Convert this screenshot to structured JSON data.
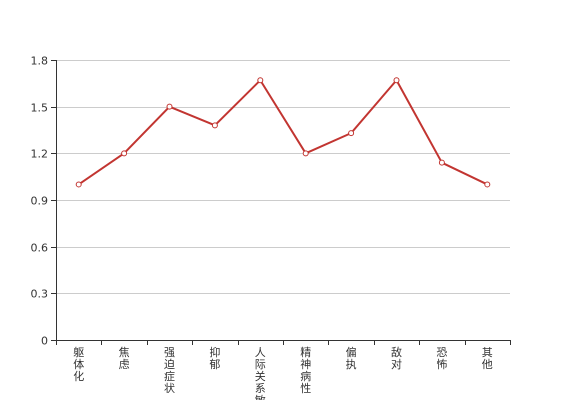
{
  "chart_data": {
    "type": "line",
    "title": "",
    "xlabel": "",
    "ylabel": "",
    "categories": [
      "躯体化",
      "焦虑",
      "强迫症状",
      "抑郁",
      "人际关系敏感",
      "精神病性",
      "偏执",
      "敌对",
      "恐怖",
      "其他"
    ],
    "series": [
      {
        "values": [
          1.0,
          1.2,
          1.5,
          1.38,
          1.67,
          1.2,
          1.33,
          1.67,
          1.14,
          1.0
        ]
      }
    ],
    "ylim": [
      0,
      1.8
    ],
    "yticks": [
      "0",
      "0.3",
      "0.6",
      "0.9",
      "1.2",
      "1.5",
      "1.8"
    ],
    "grid": true,
    "legend": "none",
    "colors": {
      "line": "#c23531",
      "grid": "#cccccc",
      "axis": "#333333"
    }
  }
}
